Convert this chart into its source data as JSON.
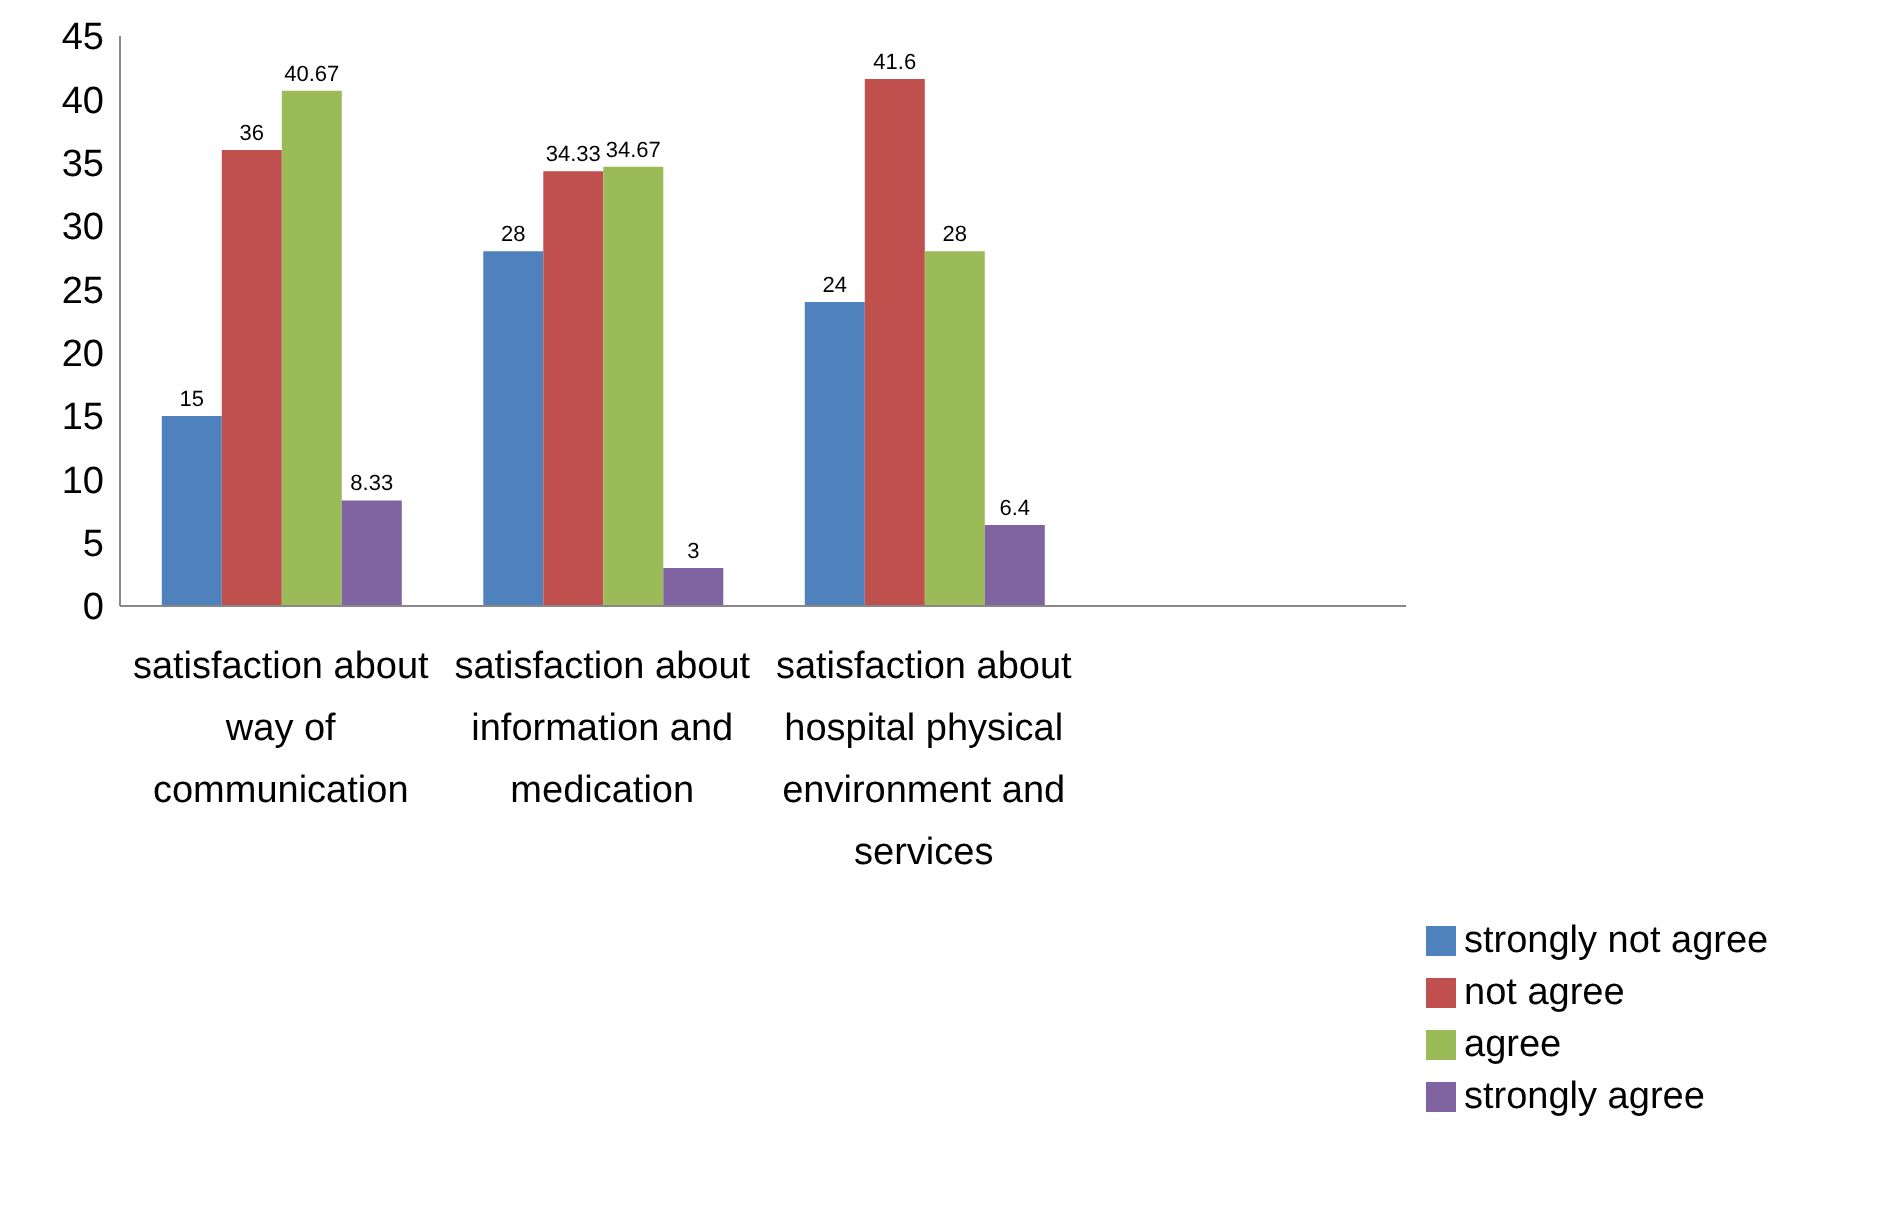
{
  "chart_data": {
    "type": "bar",
    "categories": [
      "satisfaction about way of communication",
      "satisfaction about information and medication",
      "satisfaction about hospital physical environment and services",
      null
    ],
    "series": [
      {
        "name": "strongly not agree",
        "color": "#4f81bd",
        "values": [
          15,
          28,
          24,
          null
        ]
      },
      {
        "name": "not agree",
        "color": "#c0504d",
        "values": [
          36,
          34.33,
          41.6,
          null
        ]
      },
      {
        "name": "agree",
        "color": "#9bbb59",
        "values": [
          40.67,
          34.67,
          28,
          null
        ]
      },
      {
        "name": "strongly agree",
        "color": "#8064a2",
        "values": [
          8.33,
          3,
          6.4,
          null
        ]
      }
    ],
    "ylim": [
      0,
      45
    ],
    "yticks": [
      0,
      5,
      10,
      15,
      20,
      25,
      30,
      35,
      40,
      45
    ],
    "data_labels": true,
    "grid": false,
    "legend": "bottom right"
  }
}
